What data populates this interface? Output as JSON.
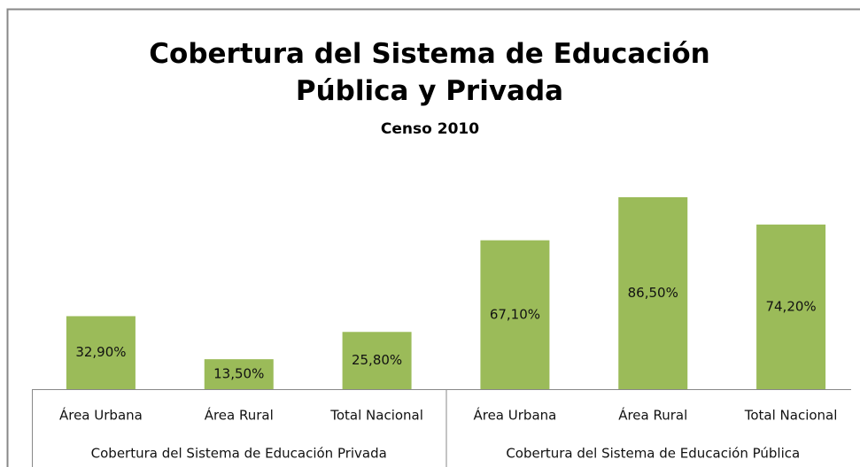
{
  "chart_data": {
    "type": "bar",
    "title": "Cobertura del Sistema de Educación Pública y Privada",
    "subtitle": "Censo 2010",
    "color": "#9bbb59",
    "groups": [
      {
        "name": "Cobertura del Sistema de Educación Privada",
        "categories": [
          "Área Urbana",
          "Área Rural",
          "Total Nacional"
        ],
        "values": [
          32.9,
          13.5,
          25.8
        ],
        "value_labels": [
          "32,90%",
          "13,50%",
          "25,80%"
        ]
      },
      {
        "name": "Cobertura del Sistema de Educación Pública",
        "categories": [
          "Área Urbana",
          "Área Rural",
          "Total Nacional"
        ],
        "values": [
          67.1,
          86.5,
          74.2
        ],
        "value_labels": [
          "67,10%",
          "86,50%",
          "74,20%"
        ]
      }
    ]
  }
}
